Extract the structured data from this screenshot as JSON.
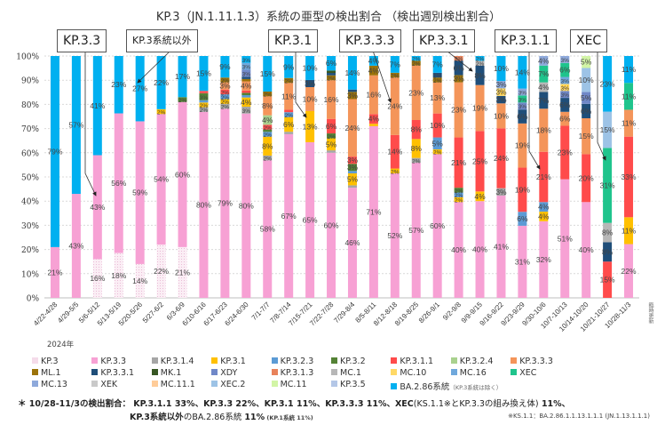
{
  "chart_data": {
    "type": "bar",
    "stacked": true,
    "normalized": true,
    "title": "KP.3（JN.1.11.1.3）系統の亜型の検出割合 （検出週別検出割合）",
    "xlabel": "",
    "ylabel": "",
    "ylim": [
      0,
      100
    ],
    "yticks": [
      "0%",
      "10%",
      "20%",
      "30%",
      "40%",
      "50%",
      "60%",
      "70%",
      "80%",
      "90%",
      "100%"
    ],
    "year_label": "2024年",
    "categories": [
      "4/22-4/28",
      "4/29-5/5",
      "5/6-5/12",
      "5/13-5/19",
      "5/20-5/26",
      "5/27-6/2",
      "6/3-6/9",
      "6/10-6/16",
      "6/17-6/23",
      "6/24-6/30",
      "7/1-7/7",
      "7/8-7/14",
      "7/15-7/21",
      "7/22-7/28",
      "7/29-8/4",
      "8/5-8/11",
      "8/12-8/18",
      "8/19-8/25",
      "8/26-9/1",
      "9/2-9/8",
      "9/9-9/15",
      "9/16-9/22",
      "9/23-9/29",
      "9/30-10/6",
      "10/7-10/13",
      "10/14-10/20",
      "10/21-10/27",
      "10/28-11/3"
    ],
    "series": [
      {
        "name": "KP.3",
        "color": "#f5dcea",
        "pattern": true,
        "values": [
          0,
          0,
          16,
          18,
          14,
          22,
          21,
          0,
          0,
          0,
          0,
          0,
          0,
          0,
          0,
          0,
          0,
          0,
          0,
          0,
          0,
          0,
          0,
          0,
          0,
          0,
          0,
          0
        ]
      },
      {
        "name": "KP.3.3",
        "color": "#f7a1d4",
        "values": [
          21,
          43,
          43,
          56,
          59,
          54,
          60,
          80,
          79,
          80,
          58,
          67,
          65,
          60,
          46,
          71,
          52,
          57,
          60,
          40,
          40,
          41,
          31,
          32,
          51,
          40,
          0,
          22
        ]
      },
      {
        "name": "KP.3.1.4",
        "color": "#a6a6a6",
        "values": [
          0,
          0,
          0,
          0,
          0,
          0,
          0,
          2,
          2,
          3,
          2,
          1,
          0,
          1,
          1,
          0,
          0,
          2,
          0,
          0,
          0,
          3,
          0,
          0,
          0,
          0,
          0,
          0
        ]
      },
      {
        "name": "KP.3.1",
        "color": "#ffc000",
        "values": [
          0,
          0,
          0,
          0,
          0,
          2,
          0,
          2,
          2,
          4,
          8,
          6,
          13,
          5,
          5,
          1,
          2,
          8,
          2,
          2,
          4,
          0,
          0,
          4,
          0,
          0,
          0,
          11
        ]
      },
      {
        "name": "KP.3.2.3",
        "color": "#5b9bd5",
        "values": [
          0,
          0,
          0,
          0,
          0,
          0,
          0,
          1,
          2,
          1,
          2,
          2,
          0,
          0,
          1,
          0,
          0,
          0,
          5,
          2,
          0,
          0,
          6,
          4,
          0,
          0,
          0,
          0
        ]
      },
      {
        "name": "KP.3.2",
        "color": "#548235",
        "values": [
          0,
          0,
          0,
          0,
          0,
          0,
          2,
          3,
          0,
          1,
          1,
          0,
          0,
          2,
          3,
          0,
          0,
          0,
          0,
          2,
          0,
          0,
          0,
          0,
          0,
          0,
          0,
          0
        ]
      },
      {
        "name": "KP.3.1.1",
        "color": "#ff4b4b",
        "values": [
          0,
          0,
          0,
          0,
          0,
          0,
          0,
          1,
          2,
          1,
          2,
          1,
          0,
          6,
          3,
          4,
          14,
          8,
          10,
          21,
          25,
          24,
          19,
          21,
          23,
          20,
          15,
          33
        ]
      },
      {
        "name": "KP.3.2.4",
        "color": "#a9d18e",
        "values": [
          0,
          0,
          0,
          0,
          0,
          0,
          0,
          0,
          0,
          0,
          4,
          0,
          0,
          0,
          0,
          0,
          0,
          0,
          0,
          0,
          0,
          0,
          0,
          0,
          0,
          0,
          0,
          0
        ]
      },
      {
        "name": "KP.3.3.3",
        "color": "#f4955a",
        "values": [
          0,
          0,
          0,
          0,
          0,
          0,
          0,
          0,
          3,
          4,
          8,
          11,
          10,
          16,
          24,
          16,
          24,
          23,
          13,
          23,
          19,
          10,
          19,
          18,
          6,
          15,
          0,
          11
        ]
      },
      {
        "name": "ML.1",
        "color": "#9c7309",
        "values": [
          0,
          0,
          0,
          0,
          0,
          0,
          0,
          0,
          2,
          1,
          2,
          2,
          0,
          2,
          3,
          4,
          2,
          2,
          2,
          3,
          0,
          0,
          0,
          0,
          0,
          0,
          0,
          0
        ]
      },
      {
        "name": "KP.3.3.1",
        "color": "#1f4e79",
        "values": [
          0,
          0,
          0,
          0,
          0,
          0,
          0,
          0,
          0,
          1,
          0,
          0,
          3,
          1,
          1,
          0,
          0,
          0,
          2,
          6,
          8,
          3,
          6,
          7,
          6,
          6,
          8,
          0
        ]
      },
      {
        "name": "MK.1",
        "color": "#375623",
        "values": [
          0,
          0,
          0,
          0,
          0,
          0,
          0,
          0,
          0,
          0,
          0,
          0,
          0,
          1,
          0,
          0,
          0,
          0,
          0,
          0,
          0,
          0,
          0,
          0,
          0,
          0,
          0,
          0
        ]
      },
      {
        "name": "XDY",
        "color": "#7088c8",
        "values": [
          0,
          0,
          0,
          0,
          0,
          0,
          0,
          0,
          0,
          3,
          0,
          0,
          0,
          0,
          0,
          0,
          0,
          0,
          0,
          0,
          0,
          0,
          3,
          0,
          3,
          5,
          0,
          0
        ]
      },
      {
        "name": "KP.3.1.3",
        "color": "#e8825b",
        "values": [
          0,
          0,
          0,
          0,
          0,
          0,
          0,
          0,
          0,
          0,
          0,
          0,
          0,
          0,
          0,
          0,
          0,
          0,
          0,
          2,
          0,
          0,
          0,
          0,
          0,
          0,
          0,
          0
        ]
      },
      {
        "name": "MC.1",
        "color": "#b7b7b7",
        "values": [
          0,
          0,
          0,
          0,
          0,
          0,
          0,
          0,
          0,
          0,
          0,
          0,
          0,
          0,
          0,
          0,
          0,
          0,
          0,
          0,
          2,
          0,
          0,
          4,
          0,
          0,
          8,
          0
        ]
      },
      {
        "name": "MC.10",
        "color": "#ffd966",
        "pattern": true,
        "values": [
          0,
          0,
          0,
          0,
          0,
          0,
          0,
          0,
          0,
          0,
          0,
          0,
          0,
          0,
          0,
          0,
          0,
          0,
          0,
          0,
          0,
          3,
          0,
          0,
          3,
          0,
          0,
          0
        ]
      },
      {
        "name": "MC.16",
        "color": "#6fa8dc",
        "values": [
          0,
          0,
          0,
          0,
          0,
          0,
          0,
          0,
          0,
          3,
          0,
          0,
          0,
          0,
          0,
          0,
          0,
          0,
          0,
          0,
          0,
          0,
          0,
          0,
          3,
          0,
          0,
          0
        ]
      },
      {
        "name": "XEC",
        "color": "#1fc48c",
        "values": [
          0,
          0,
          0,
          0,
          0,
          0,
          0,
          0,
          0,
          0,
          0,
          0,
          0,
          0,
          0,
          0,
          0,
          0,
          0,
          0,
          0,
          0,
          3,
          7,
          6,
          0,
          31,
          11
        ]
      },
      {
        "name": "MC.13",
        "color": "#8ea9db",
        "values": [
          0,
          0,
          0,
          0,
          0,
          0,
          0,
          0,
          0,
          0,
          0,
          0,
          0,
          0,
          0,
          0,
          0,
          0,
          0,
          0,
          0,
          3,
          3,
          4,
          3,
          0,
          0,
          0
        ]
      },
      {
        "name": "XEK",
        "color": "#c9c9c9",
        "values": [
          0,
          0,
          0,
          0,
          0,
          0,
          0,
          0,
          0,
          0,
          0,
          0,
          0,
          0,
          0,
          0,
          0,
          0,
          0,
          0,
          0,
          0,
          0,
          0,
          0,
          0,
          0,
          0
        ]
      },
      {
        "name": "MC.11.1",
        "color": "#ffcc99",
        "values": [
          0,
          0,
          0,
          0,
          0,
          0,
          0,
          0,
          0,
          0,
          0,
          0,
          0,
          0,
          0,
          0,
          0,
          0,
          0,
          0,
          0,
          0,
          0,
          0,
          0,
          0,
          0,
          0
        ]
      },
      {
        "name": "XEC.2",
        "color": "#9dc3e6",
        "values": [
          0,
          0,
          0,
          0,
          0,
          0,
          0,
          0,
          0,
          0,
          0,
          0,
          0,
          0,
          0,
          0,
          0,
          0,
          0,
          0,
          0,
          0,
          0,
          0,
          0,
          10,
          15,
          0
        ]
      },
      {
        "name": "MC.11",
        "color": "#d2f5a6",
        "values": [
          0,
          0,
          0,
          0,
          0,
          0,
          0,
          0,
          0,
          0,
          0,
          0,
          0,
          0,
          0,
          0,
          0,
          0,
          0,
          0,
          0,
          0,
          0,
          0,
          0,
          5,
          0,
          0
        ]
      },
      {
        "name": "KP.3.5",
        "color": "#b4c7e7",
        "values": [
          0,
          0,
          0,
          0,
          0,
          0,
          0,
          0,
          0,
          0,
          0,
          0,
          0,
          0,
          0,
          0,
          0,
          0,
          0,
          0,
          0,
          0,
          0,
          0,
          0,
          0,
          0,
          0
        ]
      },
      {
        "name": "BA.2.86系統",
        "color": "#00b0f0",
        "values": [
          79,
          57,
          41,
          23,
          27,
          22,
          17,
          15,
          9,
          3,
          15,
          9,
          10,
          6,
          14,
          4,
          7,
          2,
          7,
          0,
          2,
          10,
          14,
          0,
          0,
          0,
          23,
          11
        ]
      }
    ],
    "legend_position": "bottom",
    "legend_note": "（KP.3系統は除く）",
    "grid": true,
    "annotations": [
      "KP.3.3",
      "KP.3系統以外",
      "KP.3.1",
      "KP.3.3.3",
      "KP.3.3.1",
      "KP.3.1.1",
      "XEC"
    ]
  },
  "callouts": [
    {
      "label": "KP.3.3"
    },
    {
      "label": "KP.3系統以外"
    },
    {
      "label": "KP.3.1"
    },
    {
      "label": "KP.3.3.3"
    },
    {
      "label": "KP.3.3.1"
    },
    {
      "label": "KP.3.1.1"
    },
    {
      "label": "XEC"
    }
  ],
  "footnote": {
    "prefix": "＊ 10/28-11/3の検出割合：",
    "line1": "KP.3.1.1 33%、KP.3.3 22%、KP.3.1 11%、KP.3.3.3 11%、XEC",
    "line1_paren": "(KS.1.1※とKP.3.3の組み換え体)",
    "line1_end": " 11%、",
    "line2_bold": "KP.3系統以外",
    "line2_mid": "のBA.2.86系統 ",
    "line2_val": "11%",
    "line2_small": " (KP.1系統 11%)"
  },
  "ks_note": "※KS.1.1：BA.2.86.1.1.13.1.1.1 (JN.1.13.1.1.1)",
  "side_label": "臨時更新"
}
